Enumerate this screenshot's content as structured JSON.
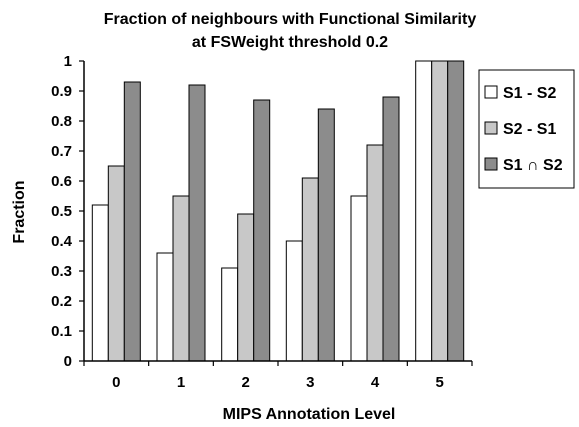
{
  "chart_data": {
    "type": "bar",
    "title": "Fraction of neighbours with Functional Similarity",
    "subtitle": "at FSWeight threshold 0.2",
    "xlabel": "MIPS Annotation Level",
    "ylabel": "Fraction",
    "categories": [
      "0",
      "1",
      "2",
      "3",
      "4",
      "5"
    ],
    "ylim": [
      0,
      1
    ],
    "yticks": [
      "0",
      "0.1",
      "0.2",
      "0.3",
      "0.4",
      "0.5",
      "0.6",
      "0.7",
      "0.8",
      "0.9",
      "1"
    ],
    "grid": false,
    "legend_position": "right",
    "series": [
      {
        "name": "S1 - S2",
        "color": "#ffffff",
        "values": [
          0.52,
          0.36,
          0.31,
          0.4,
          0.55,
          1.0
        ]
      },
      {
        "name": "S2 - S1",
        "color": "#c8c8c8",
        "values": [
          0.65,
          0.55,
          0.49,
          0.61,
          0.72,
          1.0
        ]
      },
      {
        "name": "S1 ∩ S2",
        "color": "#8c8c8c",
        "values": [
          0.93,
          0.92,
          0.87,
          0.84,
          0.88,
          1.0
        ]
      }
    ]
  }
}
